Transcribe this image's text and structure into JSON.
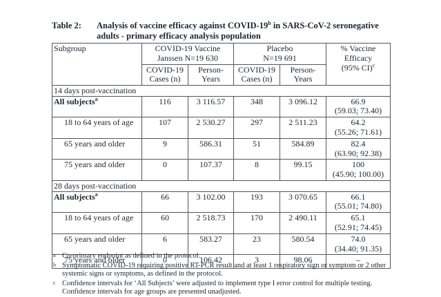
{
  "title": {
    "label": "Table 2:",
    "line1_before_sup": "Analysis of vaccine efficacy against COVID-19",
    "sup": "b",
    "line1_after_sup": " in SARS-CoV-2 seronegative",
    "line2": "adults - primary efficacy analysis population"
  },
  "table": {
    "header": {
      "subgroup": "Subgroup",
      "group1_line1": "COVID-19 Vaccine",
      "group1_line2": "Janssen N=19 630",
      "group2_line1": "Placebo",
      "group2_line2": "N=19 691",
      "cases_line1": "COVID-19",
      "cases_line2": "Cases (n)",
      "py_line1": "Person-",
      "py_line2": "Years",
      "efficacy_line1": "% Vaccine",
      "efficacy_line2": "Efficacy",
      "efficacy_line3_pre": "(95% CI)",
      "efficacy_sup": "c"
    },
    "sections": [
      {
        "title": "14 days post-vaccination",
        "rows": [
          {
            "label": "All subjects",
            "sup": "a",
            "bold": true,
            "indent": false,
            "vaccine_cases": "116",
            "vaccine_py": "3 116.57",
            "placebo_cases": "348",
            "placebo_py": "3 096.12",
            "efficacy": "66.9",
            "ci": "(59.03; 73.40)"
          },
          {
            "label": "18 to 64 years of age",
            "sup": "",
            "bold": false,
            "indent": true,
            "vaccine_cases": "107",
            "vaccine_py": "2 530.27",
            "placebo_cases": "297",
            "placebo_py": "2 511.23",
            "efficacy": "64.2",
            "ci": "(55.26; 71.61)"
          },
          {
            "label": "65 years and older",
            "sup": "",
            "bold": false,
            "indent": true,
            "vaccine_cases": "9",
            "vaccine_py": "586.31",
            "placebo_cases": "51",
            "placebo_py": "584.89",
            "efficacy": "82.4",
            "ci": "(63.90; 92.38)"
          },
          {
            "label": "75 years and older",
            "sup": "",
            "bold": false,
            "indent": true,
            "vaccine_cases": "0",
            "vaccine_py": "107.37",
            "placebo_cases": "8",
            "placebo_py": "99.15",
            "efficacy": "100",
            "ci": "(45.90; 100.00)"
          }
        ]
      },
      {
        "title": "28 days post-vaccination",
        "rows": [
          {
            "label": "All subjects",
            "sup": "a",
            "bold": true,
            "indent": false,
            "vaccine_cases": "66",
            "vaccine_py": "3 102.00",
            "placebo_cases": "193",
            "placebo_py": "3 070.65",
            "efficacy": "66.1",
            "ci": "(55.01; 74.80)"
          },
          {
            "label": "18 to 64 years of age",
            "sup": "",
            "bold": false,
            "indent": true,
            "vaccine_cases": "60",
            "vaccine_py": "2 518.73",
            "placebo_cases": "170",
            "placebo_py": "2 490.11",
            "efficacy": "65.1",
            "ci": "(52.91; 74.45)"
          },
          {
            "label": "65 years and older",
            "sup": "",
            "bold": false,
            "indent": true,
            "vaccine_cases": "6",
            "vaccine_py": "583.27",
            "placebo_cases": "23",
            "placebo_py": "580.54",
            "efficacy": "74.0",
            "ci": "(34.40; 91.35)"
          },
          {
            "label": "75 years and older",
            "sup": "",
            "bold": false,
            "indent": true,
            "vaccine_cases": "0",
            "vaccine_py": "106.42",
            "placebo_cases": "3",
            "placebo_py": "98.06",
            "efficacy": "–",
            "ci": ""
          }
        ]
      }
    ]
  },
  "footnotes": [
    {
      "marker": "a",
      "lines": [
        "Co-primary endpoint as defined in the protocol."
      ]
    },
    {
      "marker": "b",
      "lines": [
        "Symptomatic COVID-19 requiring positive RT-PCR result and at least 1 respiratory sign or symptom or 2 other",
        "systemic signs or symptoms, as defined in the protocol."
      ]
    },
    {
      "marker": "c",
      "lines": [
        "Confidence intervals for ‘All Subjects’ were adjusted to implement type I error control for multiple testing.",
        "Confidence intervals for age groups are presented unadjusted."
      ]
    }
  ]
}
